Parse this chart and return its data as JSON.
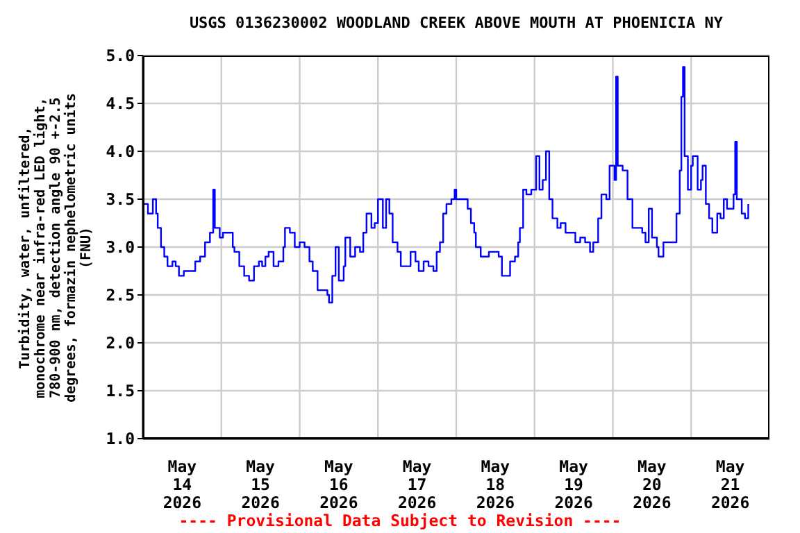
{
  "chart_data": {
    "type": "step",
    "title": "USGS 0136230002 WOODLAND CREEK ABOVE MOUTH AT PHOENICIA NY",
    "ylabel": "Turbidity, water, unfiltered,\nmonochrome near infra-red LED light,\n780-900 nm, detection angle 90 +-2.5\ndegrees, formazin nephelometric units\n(FNU)",
    "annotations": [
      "---- Provisional Data Subject to Revision ----"
    ],
    "x": [
      "2026-05-14T00:00",
      "2026-05-14T01:30",
      "2026-05-14T03:00",
      "2026-05-14T04:00",
      "2026-05-14T04:30",
      "2026-05-14T05:30",
      "2026-05-14T06:30",
      "2026-05-14T07:30",
      "2026-05-14T09:00",
      "2026-05-14T10:00",
      "2026-05-14T11:00",
      "2026-05-14T12:30",
      "2026-05-14T14:00",
      "2026-05-14T16:00",
      "2026-05-14T17:30",
      "2026-05-14T19:00",
      "2026-05-14T20:30",
      "2026-05-14T21:30",
      "2026-05-14T22:00",
      "2026-05-14T23:30",
      "2026-05-15T00:30",
      "2026-05-15T02:00",
      "2026-05-15T03:30",
      "2026-05-15T04:00",
      "2026-05-15T05:30",
      "2026-05-15T07:00",
      "2026-05-15T08:30",
      "2026-05-15T10:00",
      "2026-05-15T11:30",
      "2026-05-15T12:30",
      "2026-05-15T13:30",
      "2026-05-15T14:30",
      "2026-05-15T16:00",
      "2026-05-15T17:30",
      "2026-05-15T19:00",
      "2026-05-15T19:30",
      "2026-05-15T21:00",
      "2026-05-15T22:30",
      "2026-05-16T00:00",
      "2026-05-16T01:30",
      "2026-05-16T03:00",
      "2026-05-16T04:00",
      "2026-05-16T05:30",
      "2026-05-16T07:00",
      "2026-05-16T08:30",
      "2026-05-16T09:00",
      "2026-05-16T10:00",
      "2026-05-16T11:00",
      "2026-05-16T12:00",
      "2026-05-16T13:30",
      "2026-05-16T14:00",
      "2026-05-16T15:30",
      "2026-05-16T17:00",
      "2026-05-16T18:30",
      "2026-05-16T19:30",
      "2026-05-16T20:30",
      "2026-05-16T22:00",
      "2026-05-16T23:00",
      "2026-05-17T00:00",
      "2026-05-17T01:30",
      "2026-05-17T02:30",
      "2026-05-17T03:30",
      "2026-05-17T04:30",
      "2026-05-17T06:00",
      "2026-05-17T07:00",
      "2026-05-17T08:30",
      "2026-05-17T10:00",
      "2026-05-17T11:30",
      "2026-05-17T12:30",
      "2026-05-17T14:00",
      "2026-05-17T15:30",
      "2026-05-17T17:00",
      "2026-05-17T18:00",
      "2026-05-17T19:00",
      "2026-05-17T20:00",
      "2026-05-17T21:00",
      "2026-05-17T22:30",
      "2026-05-17T23:30",
      "2026-05-18T00:00",
      "2026-05-18T01:00",
      "2026-05-18T02:30",
      "2026-05-18T03:30",
      "2026-05-18T04:30",
      "2026-05-18T05:30",
      "2026-05-18T06:00",
      "2026-05-18T07:30",
      "2026-05-18T09:00",
      "2026-05-18T10:00",
      "2026-05-18T11:30",
      "2026-05-18T13:00",
      "2026-05-18T14:00",
      "2026-05-18T15:00",
      "2026-05-18T16:30",
      "2026-05-18T18:00",
      "2026-05-18T19:00",
      "2026-05-18T19:30",
      "2026-05-18T20:30",
      "2026-05-18T21:30",
      "2026-05-18T23:00",
      "2026-05-19T00:30",
      "2026-05-19T01:30",
      "2026-05-19T02:30",
      "2026-05-19T03:30",
      "2026-05-19T04:30",
      "2026-05-19T05:30",
      "2026-05-19T07:00",
      "2026-05-19T08:00",
      "2026-05-19T09:30",
      "2026-05-19T11:00",
      "2026-05-19T12:30",
      "2026-05-19T14:00",
      "2026-05-19T15:30",
      "2026-05-19T17:00",
      "2026-05-19T18:00",
      "2026-05-19T19:30",
      "2026-05-19T20:30",
      "2026-05-19T22:00",
      "2026-05-19T23:00",
      "2026-05-20T00:30",
      "2026-05-20T01:00",
      "2026-05-20T01:30",
      "2026-05-20T03:00",
      "2026-05-20T04:30",
      "2026-05-20T06:00",
      "2026-05-20T07:30",
      "2026-05-20T09:00",
      "2026-05-20T10:00",
      "2026-05-20T11:00",
      "2026-05-20T12:00",
      "2026-05-20T13:30",
      "2026-05-20T14:00",
      "2026-05-20T15:30",
      "2026-05-20T17:00",
      "2026-05-20T18:30",
      "2026-05-20T19:30",
      "2026-05-20T20:30",
      "2026-05-20T21:00",
      "2026-05-20T21:30",
      "2026-05-20T22:00",
      "2026-05-20T23:00",
      "2026-05-21T00:00",
      "2026-05-21T00:30",
      "2026-05-21T02:00",
      "2026-05-21T03:00",
      "2026-05-21T03:30",
      "2026-05-21T04:30",
      "2026-05-21T05:30",
      "2026-05-21T06:30",
      "2026-05-21T08:00",
      "2026-05-21T09:00",
      "2026-05-21T10:00",
      "2026-05-21T11:00",
      "2026-05-21T12:00",
      "2026-05-21T13:00",
      "2026-05-21T13:30",
      "2026-05-21T14:00",
      "2026-05-21T15:30",
      "2026-05-21T16:30",
      "2026-05-21T17:30"
    ],
    "series": [
      {
        "color": "#0000ff",
        "values": [
          3.45,
          3.35,
          3.5,
          3.35,
          3.2,
          3.0,
          2.9,
          2.8,
          2.85,
          2.8,
          2.7,
          2.75,
          2.75,
          2.85,
          2.9,
          3.05,
          3.15,
          3.6,
          3.2,
          3.1,
          3.15,
          3.15,
          3.0,
          2.95,
          2.8,
          2.7,
          2.65,
          2.8,
          2.85,
          2.8,
          2.9,
          2.95,
          2.8,
          2.85,
          3.0,
          3.2,
          3.15,
          3.0,
          3.05,
          3.0,
          2.85,
          2.75,
          2.55,
          2.55,
          2.5,
          2.42,
          2.7,
          3.0,
          2.65,
          2.8,
          3.1,
          2.9,
          3.0,
          2.95,
          3.15,
          3.35,
          3.2,
          3.25,
          3.5,
          3.2,
          3.5,
          3.35,
          3.05,
          2.95,
          2.8,
          2.8,
          2.95,
          2.85,
          2.75,
          2.85,
          2.8,
          2.75,
          2.95,
          3.05,
          3.35,
          3.45,
          3.5,
          3.6,
          3.5,
          3.5,
          3.5,
          3.4,
          3.25,
          3.15,
          3.0,
          2.9,
          2.9,
          2.95,
          2.95,
          2.9,
          2.7,
          2.7,
          2.85,
          2.9,
          3.05,
          3.2,
          3.6,
          3.55,
          3.6,
          3.95,
          3.6,
          3.7,
          4.0,
          3.5,
          3.3,
          3.2,
          3.25,
          3.15,
          3.15,
          3.05,
          3.1,
          3.05,
          2.95,
          3.05,
          3.3,
          3.55,
          3.5,
          3.85,
          3.7,
          4.78,
          3.85,
          3.8,
          3.5,
          3.2,
          3.2,
          3.15,
          3.05,
          3.4,
          3.1,
          3.0,
          2.9,
          3.05,
          3.05,
          3.05,
          3.35,
          3.8,
          4.57,
          4.88,
          3.95,
          3.6,
          3.85,
          3.95,
          3.6,
          3.7,
          3.85,
          3.45,
          3.3,
          3.15,
          3.35,
          3.3,
          3.5,
          3.4,
          3.4,
          3.55,
          4.1,
          3.5,
          3.35,
          3.3,
          3.45
        ]
      }
    ],
    "xlim": [
      "2026-05-14T00:00",
      "2026-05-22T00:00"
    ],
    "xticks": [
      {
        "value": "2026-05-14T12:00",
        "label": "May\n14\n2026"
      },
      {
        "value": "2026-05-15T00:00",
        "label": null
      },
      {
        "value": "2026-05-15T12:00",
        "label": "May\n15\n2026"
      },
      {
        "value": "2026-05-16T00:00",
        "label": null
      },
      {
        "value": "2026-05-16T12:00",
        "label": "May\n16\n2026"
      },
      {
        "value": "2026-05-17T00:00",
        "label": null
      },
      {
        "value": "2026-05-17T12:00",
        "label": "May\n17\n2026"
      },
      {
        "value": "2026-05-18T00:00",
        "label": null
      },
      {
        "value": "2026-05-18T12:00",
        "label": "May\n18\n2026"
      },
      {
        "value": "2026-05-19T00:00",
        "label": null
      },
      {
        "value": "2026-05-19T12:00",
        "label": "May\n19\n2026"
      },
      {
        "value": "2026-05-20T00:00",
        "label": null
      },
      {
        "value": "2026-05-20T12:00",
        "label": "May\n20\n2026"
      },
      {
        "value": "2026-05-21T00:00",
        "label": null
      },
      {
        "value": "2026-05-21T12:00",
        "label": "May\n21\n2026"
      }
    ],
    "ylim": [
      1,
      5
    ],
    "yticks": [
      {
        "value": 1,
        "label": "1.0"
      },
      {
        "value": 1.5,
        "label": "1.5"
      },
      {
        "value": 2,
        "label": "2.0"
      },
      {
        "value": 2.5,
        "label": "2.5"
      },
      {
        "value": 3,
        "label": "3.0"
      },
      {
        "value": 3.5,
        "label": "3.5"
      },
      {
        "value": 4,
        "label": "4.0"
      },
      {
        "value": 4.5,
        "label": "4.5"
      },
      {
        "value": 5,
        "label": "5.0"
      }
    ],
    "grid": true,
    "marker": "none",
    "line_style": "solid"
  }
}
